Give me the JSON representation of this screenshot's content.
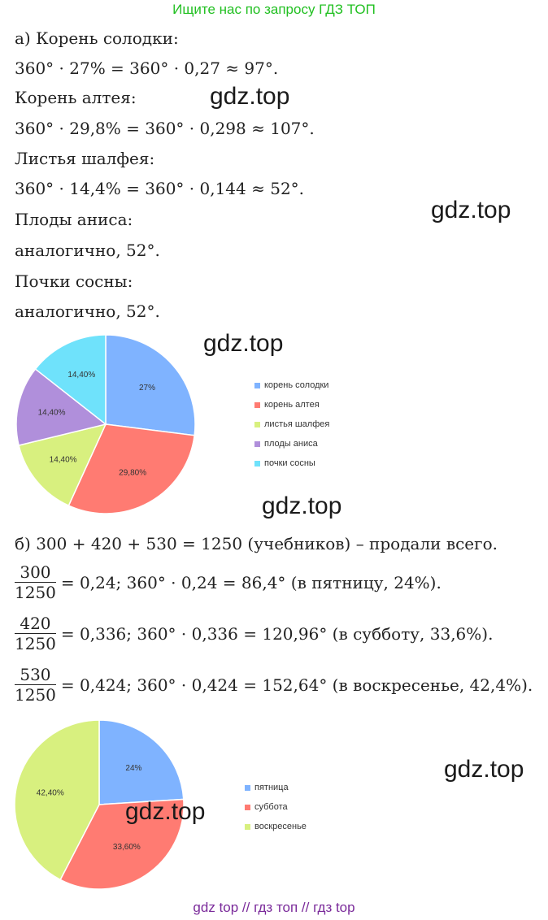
{
  "banner": "Ищите нас по запросу ГДЗ ТОП",
  "part_a": {
    "lines": [
      "а) Корень солодки:",
      "360° · 27% = 360° · 0,27 ≈ 97°.",
      "Корень алтея:",
      "360° · 29,8% = 360° · 0,298 ≈ 107°.",
      "Листья шалфея:",
      "360° · 14,4% = 360° · 0,144 ≈ 52°.",
      "Плоды аниса:",
      "аналогично, 52°.",
      "Почки сосны:",
      "аналогично, 52°."
    ]
  },
  "part_b": {
    "intro": "б) 300 + 420 + 530 = 1250 (учебников) – продали всего.",
    "rows": [
      {
        "num": "300",
        "den": "1250",
        "rest": "= 0,24;    360° · 0,24 = 86,4° (в пятницу, 24%)."
      },
      {
        "num": "420",
        "den": "1250",
        "rest": "= 0,336;    360° · 0,336 = 120,96° (в субботу, 33,6%)."
      },
      {
        "num": "530",
        "den": "1250",
        "rest": "= 0,424;    360° · 0,424 = 152,64° (в воскресенье, 42,4%)."
      }
    ]
  },
  "watermarks": [
    "gdz.top",
    "gdz.top",
    "gdz.top",
    "gdz.top",
    "gdz.top",
    "gdz.top"
  ],
  "footer": "gdz top  //  гдз топ  //  гдз top",
  "chart_data": [
    {
      "type": "pie",
      "slices": [
        {
          "label": "корень солодки",
          "value": 27,
          "text": "27%",
          "color": "#7fb3ff"
        },
        {
          "label": "корень алтея",
          "value": 29.8,
          "text": "29,80%",
          "color": "#ff7b72"
        },
        {
          "label": "листья шалфея",
          "value": 14.4,
          "text": "14,40%",
          "color": "#d8f07f"
        },
        {
          "label": "плоды аниса",
          "value": 14.4,
          "text": "14,40%",
          "color": "#b08fdb"
        },
        {
          "label": "почки сосны",
          "value": 14.4,
          "text": "14,40%",
          "color": "#6fe2fb"
        }
      ],
      "legend_position": "right"
    },
    {
      "type": "pie",
      "slices": [
        {
          "label": "пятница",
          "value": 24,
          "text": "24%",
          "color": "#7fb3ff"
        },
        {
          "label": "суббота",
          "value": 33.6,
          "text": "33,60%",
          "color": "#ff7b72"
        },
        {
          "label": "воскресенье",
          "value": 42.4,
          "text": "42,40%",
          "color": "#d8f07f"
        }
      ],
      "legend_position": "right"
    }
  ]
}
